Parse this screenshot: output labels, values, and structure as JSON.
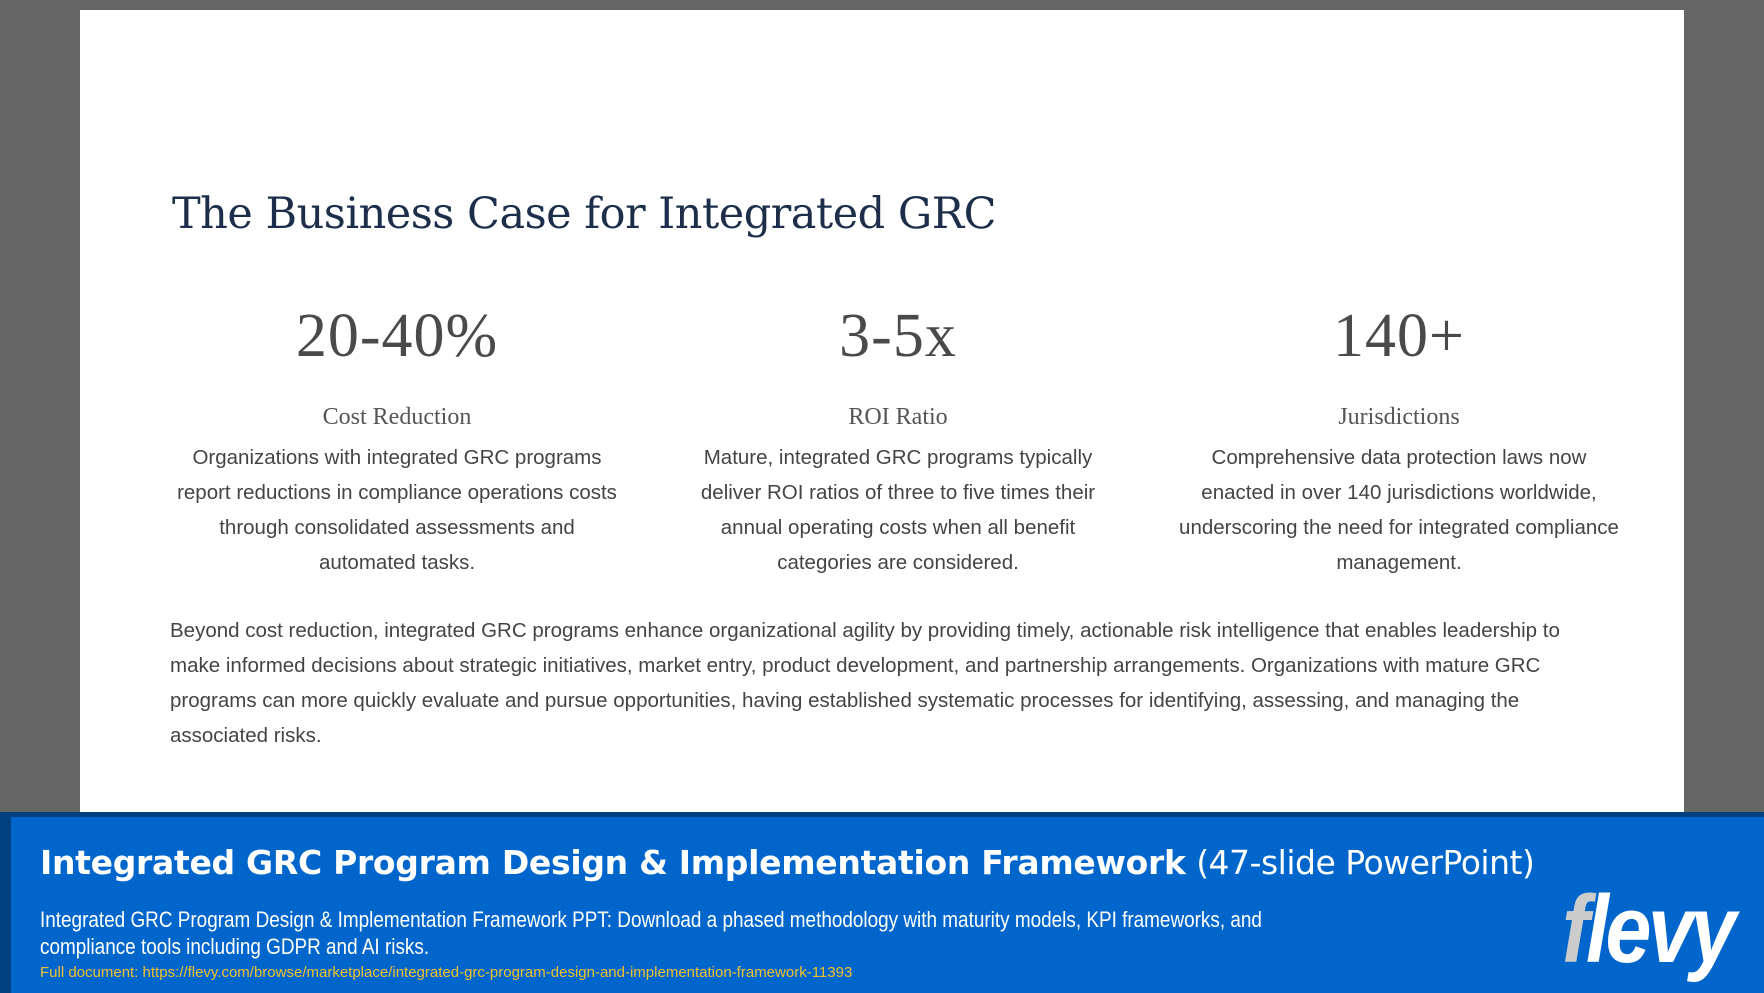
{
  "slide": {
    "title": "The Business Case for Integrated GRC",
    "stats": [
      {
        "value": "20-40%",
        "label": "Cost Reduction",
        "description": "Organizations with integrated GRC programs report reductions in compliance operations costs through consolidated assessments and automated tasks."
      },
      {
        "value": "3-5x",
        "label": "ROI Ratio",
        "description": "Mature, integrated GRC programs typically deliver ROI ratios of three to five times their annual operating costs when all benefit categories are considered."
      },
      {
        "value": "140+",
        "label": "Jurisdictions",
        "description": "Comprehensive data protection laws now enacted in over 140 jurisdictions worldwide, underscoring the need for integrated compliance management."
      }
    ],
    "paragraph": "Beyond cost reduction, integrated GRC programs enhance organizational agility by providing timely, actionable risk intelligence that enables leadership to make informed decisions about strategic initiatives, market entry, product development, and partnership arrangements. Organizations with mature GRC programs can more quickly evaluate and pursue opportunities, having established systematic processes for identifying, assessing, and managing the associated risks."
  },
  "banner": {
    "title_bold": "Integrated GRC Program Design & Implementation Framework",
    "title_light": "(47-slide PowerPoint)",
    "description": "Integrated GRC Program Design & Implementation Framework PPT: Download a phased methodology with maturity models, KPI frameworks, and compliance tools including GDPR and AI risks.",
    "url_text": "Full document: https://flevy.com/browse/marketplace/integrated-grc-program-design-and-implementation-framework-11393",
    "logo_first": "f",
    "logo_rest": "levy"
  },
  "colors": {
    "background": "#666666",
    "slide_title": "#1c2e4a",
    "stat_text": "#4a4a4a",
    "body_text": "#444444",
    "banner_blue": "#0066cc",
    "banner_border": "#003f80",
    "url_yellow": "#f0c030",
    "logo_f": "#cccccc"
  }
}
